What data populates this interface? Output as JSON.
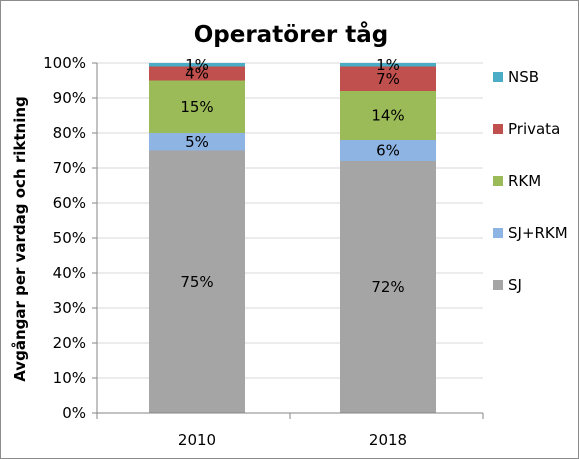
{
  "chart_data": {
    "type": "bar",
    "stacked": true,
    "title": "Operatörer tåg",
    "xlabel": "",
    "ylabel": "Avgångar per vardag och riktning",
    "categories": [
      "2010",
      "2018"
    ],
    "ylim": [
      0,
      100
    ],
    "yticks": [
      "0%",
      "10%",
      "20%",
      "30%",
      "40%",
      "50%",
      "60%",
      "70%",
      "80%",
      "90%",
      "100%"
    ],
    "grid": true,
    "legend_position": "right",
    "series": [
      {
        "name": "SJ",
        "color": "#a5a5a5",
        "values": [
          75,
          72
        ],
        "labels": [
          "75%",
          "72%"
        ]
      },
      {
        "name": "SJ+RKM",
        "color": "#8eb4e3",
        "values": [
          5,
          6
        ],
        "labels": [
          "5%",
          "6%"
        ]
      },
      {
        "name": "RKM",
        "color": "#9bbb59",
        "values": [
          15,
          14
        ],
        "labels": [
          "15%",
          "14%"
        ]
      },
      {
        "name": "Privata",
        "color": "#c0504d",
        "values": [
          4,
          7
        ],
        "labels": [
          "4%",
          "7%"
        ]
      },
      {
        "name": "NSB",
        "color": "#4bacc6",
        "values": [
          1,
          1
        ],
        "labels": [
          "1%",
          "1%"
        ]
      }
    ]
  }
}
